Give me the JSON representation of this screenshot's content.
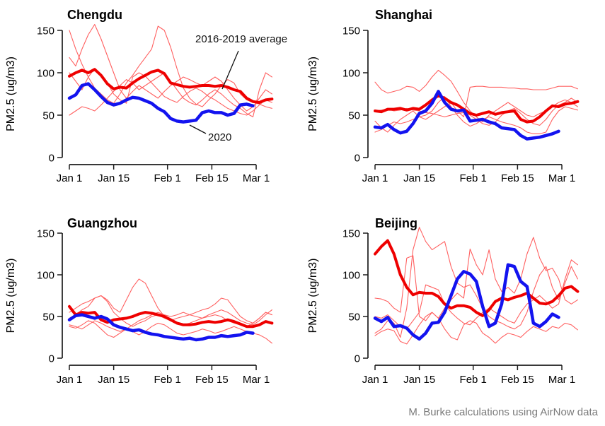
{
  "page": {
    "background": "#ffffff",
    "footer_credit": "M. Burke calculations using AirNow data"
  },
  "colors": {
    "average_line": "#ee0000",
    "year_line": "#ff6060",
    "line_2020": "#1313ef",
    "axis": "#1c1c1c",
    "title_text": "#000000",
    "annotation_text": "#111111",
    "footer_text": "#7b7b7b"
  },
  "axes": {
    "y_label": "PM2.5 (ug/m3)",
    "y_ticks": [
      0,
      50,
      100,
      150
    ],
    "ylim": [
      0,
      150
    ],
    "x_tick_labels": [
      "Jan 1",
      "Jan 15",
      "Feb 1",
      "Feb 15",
      "Mar 1"
    ],
    "x_tick_days": [
      0,
      14,
      31,
      45,
      59
    ],
    "day_step": 2,
    "grid": "off",
    "legend": "annotated on first panel"
  },
  "annotations": {
    "average_label": "2016-2019 average",
    "label_2020": "2020"
  },
  "chart_data": [
    {
      "type": "line",
      "title": "Chengdu",
      "x_unit": "days since Jan 1",
      "series": [
        {
          "name": "year-line-1",
          "role": "individual-year-2016-2019",
          "values": [
            150,
            128,
            110,
            95,
            82,
            75,
            68,
            64,
            75,
            88,
            97,
            108,
            118,
            128,
            155,
            150,
            130,
            105,
            82,
            70,
            63,
            60,
            68,
            75,
            85,
            92,
            88,
            75,
            68,
            65,
            63,
            60,
            58
          ]
        },
        {
          "name": "year-line-2",
          "role": "individual-year-2016-2019",
          "values": [
            118,
            108,
            128,
            145,
            157,
            140,
            120,
            100,
            80,
            70,
            78,
            85,
            80,
            75,
            70,
            78,
            85,
            90,
            95,
            92,
            88,
            85,
            90,
            95,
            90,
            80,
            70,
            62,
            55,
            60,
            70,
            80,
            75
          ]
        },
        {
          "name": "year-line-3",
          "role": "individual-year-2016-2019",
          "values": [
            100,
            90,
            80,
            95,
            105,
            98,
            88,
            75,
            68,
            64,
            95,
            100,
            96,
            88,
            80,
            72,
            68,
            65,
            72,
            78,
            82,
            78,
            72,
            68,
            63,
            58,
            55,
            52,
            50,
            55,
            62,
            68,
            65
          ]
        },
        {
          "name": "year-line-4",
          "role": "individual-year-2016-2019",
          "values": [
            50,
            55,
            60,
            58,
            55,
            62,
            70,
            78,
            85,
            92,
            88,
            80,
            85,
            90,
            95,
            100,
            90,
            80,
            70,
            65,
            62,
            68,
            75,
            80,
            75,
            68,
            62,
            58,
            52,
            48,
            80,
            100,
            95
          ]
        },
        {
          "name": "2016-2019 average",
          "role": "average",
          "values": [
            96,
            100,
            103,
            100,
            104,
            97,
            87,
            81,
            83,
            82,
            88,
            93,
            97,
            101,
            103,
            99,
            88,
            86,
            84,
            83,
            84,
            85,
            85,
            84,
            85,
            83,
            80,
            78,
            70,
            66,
            65,
            68,
            69
          ]
        },
        {
          "name": "2020",
          "role": "2020",
          "values": [
            70,
            74,
            85,
            87,
            80,
            72,
            65,
            62,
            64,
            68,
            71,
            70,
            67,
            64,
            58,
            54,
            46,
            43,
            42,
            43,
            44,
            53,
            55,
            53,
            53,
            50,
            52,
            62,
            63,
            61
          ]
        }
      ]
    },
    {
      "type": "line",
      "title": "Shanghai",
      "x_unit": "days since Jan 1",
      "series": [
        {
          "name": "year-line-1",
          "role": "individual-year-2016-2019",
          "values": [
            89,
            80,
            76,
            78,
            80,
            84,
            83,
            78,
            85,
            95,
            103,
            97,
            90,
            78,
            65,
            55,
            48,
            42,
            50,
            55,
            60,
            65,
            60,
            55,
            50,
            48,
            52,
            55,
            60,
            65,
            68,
            65,
            60
          ]
        },
        {
          "name": "year-line-2",
          "role": "individual-year-2016-2019",
          "values": [
            43,
            35,
            30,
            38,
            45,
            50,
            55,
            48,
            45,
            50,
            55,
            60,
            65,
            55,
            48,
            83,
            84,
            84,
            83,
            83,
            83,
            82,
            82,
            81,
            81,
            80,
            80,
            80,
            82,
            84,
            84,
            84,
            81
          ]
        },
        {
          "name": "year-line-3",
          "role": "individual-year-2016-2019",
          "values": [
            55,
            56,
            57,
            55,
            56,
            58,
            56,
            55,
            53,
            52,
            50,
            48,
            50,
            52,
            53,
            50,
            45,
            40,
            38,
            42,
            50,
            55,
            58,
            52,
            45,
            40,
            38,
            45,
            55,
            62,
            65,
            70,
            65
          ]
        },
        {
          "name": "year-line-4",
          "role": "individual-year-2016-2019",
          "values": [
            30,
            33,
            38,
            42,
            40,
            42,
            45,
            48,
            50,
            55,
            65,
            72,
            60,
            50,
            42,
            37,
            40,
            45,
            48,
            45,
            42,
            40,
            38,
            35,
            30,
            28,
            28,
            30,
            45,
            55,
            60,
            58,
            56
          ]
        },
        {
          "name": "2016-2019 average",
          "role": "average",
          "values": [
            55,
            54,
            57,
            57,
            58,
            56,
            58,
            57,
            62,
            68,
            73,
            70,
            65,
            62,
            57,
            52,
            50,
            52,
            54,
            51,
            53,
            54,
            55,
            45,
            42,
            43,
            48,
            55,
            61,
            60,
            63,
            64,
            66
          ]
        },
        {
          "name": "2020",
          "role": "2020",
          "values": [
            36,
            35,
            39,
            33,
            29,
            31,
            40,
            52,
            55,
            64,
            78,
            65,
            57,
            55,
            56,
            43,
            44,
            45,
            42,
            40,
            35,
            34,
            33,
            26,
            22,
            23,
            24,
            26,
            28,
            31
          ]
        }
      ]
    },
    {
      "type": "line",
      "title": "Guangzhou",
      "x_unit": "days since Jan 1",
      "series": [
        {
          "name": "year-line-1",
          "role": "individual-year-2016-2019",
          "values": [
            55,
            60,
            65,
            68,
            72,
            75,
            70,
            60,
            55,
            70,
            85,
            95,
            90,
            75,
            60,
            50,
            45,
            42,
            40,
            42,
            45,
            48,
            50,
            52,
            50,
            45,
            42,
            40,
            38,
            42,
            48,
            55,
            52
          ]
        },
        {
          "name": "year-line-2",
          "role": "individual-year-2016-2019",
          "values": [
            48,
            52,
            58,
            62,
            72,
            75,
            68,
            55,
            48,
            42,
            38,
            42,
            45,
            50,
            52,
            48,
            45,
            48,
            50,
            52,
            50,
            48,
            52,
            55,
            58,
            55,
            50,
            45,
            42,
            40,
            45,
            52,
            58
          ]
        },
        {
          "name": "year-line-3",
          "role": "individual-year-2016-2019",
          "values": [
            40,
            38,
            35,
            40,
            45,
            42,
            38,
            35,
            32,
            35,
            40,
            45,
            48,
            52,
            55,
            52,
            50,
            52,
            55,
            52,
            55,
            58,
            60,
            65,
            72,
            70,
            60,
            50,
            45,
            42,
            48,
            55,
            52
          ]
        },
        {
          "name": "year-line-4",
          "role": "individual-year-2016-2019",
          "values": [
            38,
            36,
            40,
            45,
            42,
            35,
            28,
            25,
            30,
            35,
            32,
            28,
            32,
            38,
            42,
            40,
            35,
            30,
            28,
            30,
            32,
            35,
            33,
            30,
            32,
            35,
            38,
            35,
            32,
            30,
            28,
            24,
            18
          ]
        },
        {
          "name": "2016-2019 average",
          "role": "average",
          "values": [
            62,
            52,
            55,
            54,
            55,
            46,
            43,
            46,
            47,
            48,
            50,
            53,
            55,
            54,
            52,
            50,
            46,
            42,
            40,
            40,
            41,
            43,
            44,
            43,
            44,
            46,
            44,
            41,
            38,
            38,
            40,
            44,
            42
          ]
        },
        {
          "name": "2020",
          "role": "2020",
          "values": [
            46,
            51,
            52,
            50,
            48,
            50,
            47,
            40,
            37,
            35,
            33,
            34,
            31,
            29,
            28,
            26,
            25,
            24,
            23,
            24,
            22,
            23,
            25,
            25,
            27,
            26,
            27,
            28,
            31,
            30
          ]
        }
      ]
    },
    {
      "type": "line",
      "title": "Beijing",
      "x_unit": "days since Jan 1",
      "series": [
        {
          "name": "year-line-1",
          "role": "individual-year-2016-2019",
          "values": [
            30,
            35,
            45,
            42,
            25,
            60,
            130,
            157,
            140,
            130,
            135,
            140,
            110,
            90,
            85,
            88,
            75,
            60,
            50,
            45,
            42,
            38,
            35,
            40,
            55,
            80,
            100,
            110,
            85,
            70,
            90,
            110,
            95
          ]
        },
        {
          "name": "year-line-2",
          "role": "individual-year-2016-2019",
          "values": [
            72,
            71,
            68,
            60,
            55,
            120,
            123,
            50,
            45,
            55,
            48,
            60,
            70,
            78,
            72,
            131,
            112,
            100,
            130,
            95,
            80,
            85,
            78,
            95,
            125,
            145,
            120,
            105,
            108,
            95,
            70,
            65,
            70
          ]
        },
        {
          "name": "year-line-3",
          "role": "individual-year-2016-2019",
          "values": [
            27,
            32,
            35,
            33,
            20,
            17,
            28,
            40,
            50,
            55,
            48,
            35,
            25,
            22,
            40,
            45,
            42,
            30,
            25,
            18,
            25,
            30,
            28,
            25,
            32,
            38,
            35,
            32,
            38,
            36,
            42,
            40,
            34
          ]
        },
        {
          "name": "year-line-4",
          "role": "individual-year-2016-2019",
          "values": [
            50,
            48,
            52,
            45,
            38,
            35,
            45,
            55,
            88,
            85,
            82,
            65,
            55,
            48,
            42,
            40,
            48,
            55,
            60,
            55,
            50,
            45,
            42,
            55,
            65,
            70,
            75,
            68,
            60,
            65,
            95,
            118,
            112
          ]
        },
        {
          "name": "2016-2019 average",
          "role": "average",
          "values": [
            125,
            134,
            141,
            125,
            100,
            85,
            76,
            79,
            78,
            78,
            74,
            65,
            60,
            63,
            63,
            61,
            55,
            51,
            58,
            68,
            72,
            70,
            73,
            75,
            78,
            72,
            66,
            65,
            68,
            75,
            84,
            86,
            80
          ]
        },
        {
          "name": "2020",
          "role": "2020",
          "values": [
            48,
            44,
            49,
            38,
            39,
            36,
            28,
            23,
            30,
            42,
            43,
            55,
            75,
            95,
            104,
            101,
            92,
            62,
            38,
            42,
            65,
            112,
            110,
            92,
            86,
            42,
            38,
            44,
            53,
            49
          ]
        }
      ]
    }
  ]
}
